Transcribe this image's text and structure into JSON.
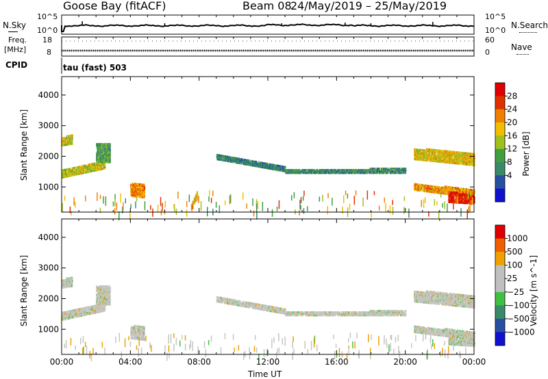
{
  "header": {
    "station": "Goose Bay (fitACF)",
    "beam": "Beam 08",
    "dates": "24/May/2019 – 25/May/2019"
  },
  "panel_noise": {
    "left_label": "N.Sky",
    "right_label": "N.Search",
    "left_ticks": [
      "10^5",
      "10^0"
    ],
    "right_ticks": [
      "10^5",
      "10^0"
    ]
  },
  "panel_freq": {
    "left_label_1": "Freq.",
    "left_label_2": "[MHz]",
    "right_label": "Nave",
    "left_ticks": [
      "18",
      "8"
    ],
    "right_ticks": [
      "60",
      "0"
    ]
  },
  "panel_cpid": {
    "label": "CPID",
    "text": "tau (fast) 503"
  },
  "power_panel": {
    "ylabel": "Slant Range [km]",
    "colorbar_label": "Power [dB]",
    "colorbar_ticks": [
      "28",
      "24",
      "20",
      "16",
      "12",
      "8",
      "4"
    ]
  },
  "velocity_panel": {
    "ylabel": "Slant Range [km]",
    "colorbar_label": "Velocity [m s^-1]",
    "colorbar_ticks": [
      "1000",
      "500",
      "100",
      "25",
      "−25",
      "−100",
      "−500",
      "−1000"
    ]
  },
  "x_axis": {
    "label": "Time UT",
    "ticks": [
      "00:00",
      "04:00",
      "08:00",
      "12:00",
      "16:00",
      "20:00",
      "00:00"
    ]
  },
  "colors": {
    "power_scale": [
      "#1010d0",
      "#2850a0",
      "#3a8a6a",
      "#40a040",
      "#a0c020",
      "#f0c000",
      "#f08000",
      "#e03000",
      "#e00000"
    ],
    "velocity_scale": [
      "#1010d0",
      "#2850a0",
      "#3a8a6a",
      "#40c040",
      "#c0c0c0",
      "#c0c0c0",
      "#f0a000",
      "#f06000",
      "#e00000"
    ]
  },
  "chart_data": [
    {
      "type": "heatmap",
      "title": "Power",
      "xlabel": "Time UT",
      "ylabel": "Slant Range [km]",
      "xlim": [
        0,
        24
      ],
      "ylim": [
        180,
        4600
      ],
      "y_ticks": [
        1000,
        2000,
        3000,
        4000
      ],
      "colorbar": {
        "label": "Power [dB]",
        "range": [
          0,
          30
        ],
        "ticks": [
          4,
          8,
          12,
          16,
          20,
          24,
          28
        ]
      },
      "bands": [
        {
          "t0": 0.0,
          "t1": 2.5,
          "r0": 1300,
          "r1": 1550,
          "r0end": 1600,
          "r1end": 1850,
          "level": 0.55
        },
        {
          "t0": 0.0,
          "t1": 0.6,
          "r0": 2350,
          "r1": 2600,
          "r0end": 2400,
          "r1end": 2700,
          "level": 0.55
        },
        {
          "t0": 2.0,
          "t1": 2.8,
          "r0": 1800,
          "r1": 2400,
          "r0end": 1800,
          "r1end": 2400,
          "level": 0.35
        },
        {
          "t0": 4.0,
          "t1": 4.8,
          "r0": 700,
          "r1": 1100,
          "r0end": 650,
          "r1end": 1100,
          "level": 0.75
        },
        {
          "t0": 9.0,
          "t1": 13.0,
          "r0": 1900,
          "r1": 2050,
          "r0end": 1500,
          "r1end": 1650,
          "level": 0.25
        },
        {
          "t0": 13.0,
          "t1": 20.0,
          "r0": 1450,
          "r1": 1550,
          "r0end": 1450,
          "r1end": 1600,
          "level": 0.28
        },
        {
          "t0": 20.5,
          "t1": 24.0,
          "r0": 1900,
          "r1": 2250,
          "r0end": 1700,
          "r1end": 2100,
          "level": 0.6
        },
        {
          "t0": 20.5,
          "t1": 24.0,
          "r0": 900,
          "r1": 1100,
          "r0end": 650,
          "r1end": 900,
          "level": 0.7
        },
        {
          "t0": 22.5,
          "t1": 24.0,
          "r0": 500,
          "r1": 850,
          "r0end": 450,
          "r1end": 700,
          "level": 0.95
        }
      ]
    },
    {
      "type": "heatmap",
      "title": "Velocity",
      "xlabel": "Time UT",
      "ylabel": "Slant Range [km]",
      "xlim": [
        0,
        24
      ],
      "ylim": [
        180,
        4600
      ],
      "y_ticks": [
        1000,
        2000,
        3000,
        4000
      ],
      "colorbar": {
        "label": "Velocity [m s^-1]",
        "range": [
          -1000,
          1000
        ],
        "ticks": [
          1000,
          500,
          100,
          25,
          -25,
          -100,
          -500,
          -1000
        ]
      },
      "dominant_value_range": [
        -25,
        25
      ]
    }
  ]
}
